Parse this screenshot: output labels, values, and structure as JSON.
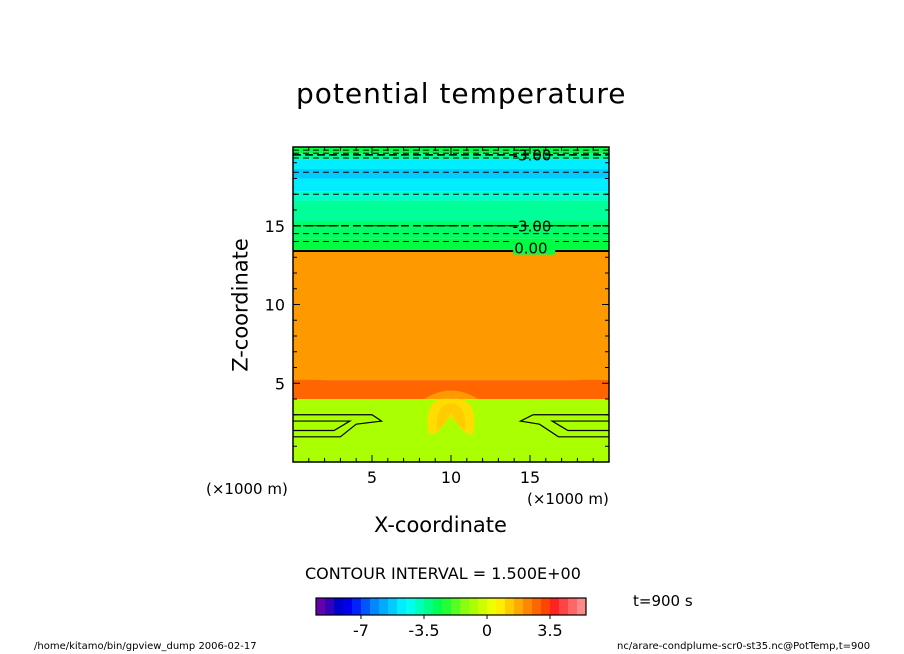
{
  "chart_data": {
    "type": "heatmap",
    "title": "potential temperature",
    "xlabel": "X-coordinate",
    "ylabel": "Z-coordinate",
    "x_unit": "(×1000 m)",
    "y_unit": "(×1000 m)",
    "xlim": [
      0,
      20
    ],
    "ylim": [
      0,
      20
    ],
    "x_ticks": [
      5,
      10,
      15
    ],
    "y_ticks": [
      5,
      10,
      15
    ],
    "contour_interval_text": "CONTOUR INTERVAL = 1.500E+00",
    "time_text": "t=900 s",
    "contour_labels": [
      "-3.00",
      "-3.00",
      "0.00"
    ],
    "colorbar": {
      "tick_labels": [
        "-7",
        "-3.5",
        "0",
        "3.5"
      ],
      "tick_values": [
        -7,
        -3.5,
        0,
        3.5
      ],
      "range": [
        -9.5,
        5.5
      ],
      "colors": [
        "#6600aa",
        "#3300bb",
        "#0000cc",
        "#0000ee",
        "#0022ff",
        "#0055ff",
        "#0088ff",
        "#00aaff",
        "#00ccff",
        "#00eeff",
        "#00ffee",
        "#00ffbb",
        "#00ff88",
        "#00ff55",
        "#22ff33",
        "#55ff22",
        "#88ff11",
        "#aaff00",
        "#ccff00",
        "#eeff00",
        "#ffee00",
        "#ffcc00",
        "#ffaa00",
        "#ff8800",
        "#ff6600",
        "#ff4400",
        "#ff2222",
        "#ff4444",
        "#ff6666",
        "#ff8888"
      ]
    },
    "bands": [
      {
        "z_from": 0,
        "z_to": 4.0,
        "color": "#aaff00"
      },
      {
        "z_from": 4.0,
        "z_to": 5.2,
        "color": "#ff6600"
      },
      {
        "z_from": 5.2,
        "z_to": 13.4,
        "color": "#ff9900"
      },
      {
        "z_from": 13.4,
        "z_to": 14.2,
        "color": "#00ff44"
      },
      {
        "z_from": 14.2,
        "z_to": 15.3,
        "color": "#00ff66"
      },
      {
        "z_from": 15.3,
        "z_to": 16.6,
        "color": "#00ff99"
      },
      {
        "z_from": 16.6,
        "z_to": 17.2,
        "color": "#00ffcc"
      },
      {
        "z_from": 17.2,
        "z_to": 18.0,
        "color": "#00eeff"
      },
      {
        "z_from": 18.0,
        "z_to": 18.6,
        "color": "#00ccff"
      },
      {
        "z_from": 18.6,
        "z_to": 19.2,
        "color": "#00eeff"
      },
      {
        "z_from": 19.2,
        "z_to": 19.6,
        "color": "#00ff99"
      },
      {
        "z_from": 19.6,
        "z_to": 20.0,
        "color": "#00ff44"
      }
    ],
    "warm_anomaly_color": "#ffdd00",
    "dashed_z_levels": [
      14.0,
      14.5,
      15.0,
      17.0,
      18.4,
      19.3,
      19.6,
      19.8
    ],
    "solid_z_levels": [
      13.4
    ]
  },
  "footer": {
    "left": "/home/kitamo/bin/gpview_dump  2006-02-17",
    "right": "nc/arare-condplume-scr0-st35.nc@PotTemp,t=900"
  }
}
